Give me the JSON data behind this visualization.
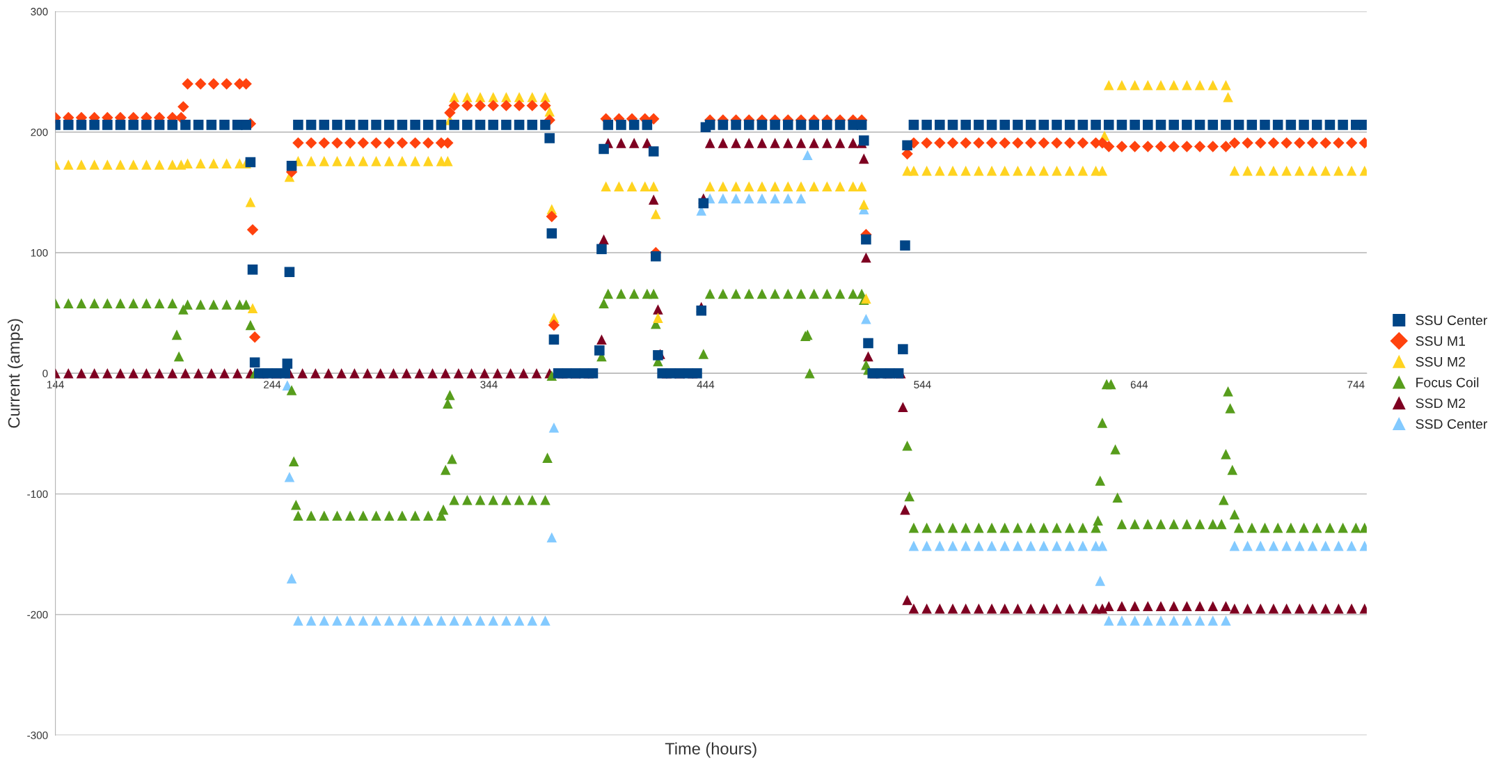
{
  "chart_data": {
    "type": "scatter",
    "xlabel": "Time (hours)",
    "ylabel": "Current (amps)",
    "xlim": [
      144,
      749
    ],
    "ylim": [
      -300,
      300
    ],
    "xticks": [
      144,
      244,
      344,
      444,
      544,
      644,
      744
    ],
    "yticks": [
      -300,
      -200,
      -100,
      0,
      100,
      200,
      300
    ],
    "grid": "y",
    "legend": "right",
    "series": [
      {
        "name": "SSU Center",
        "color": "#004586",
        "marker": "square",
        "x": [
          144,
          150,
          156,
          162,
          168,
          174,
          180,
          186,
          192,
          198,
          204,
          210,
          216,
          222,
          228,
          232,
          234,
          235,
          236,
          238,
          242,
          246,
          250,
          251,
          252,
          253,
          256,
          262,
          268,
          274,
          280,
          286,
          292,
          298,
          304,
          310,
          316,
          322,
          328,
          334,
          340,
          346,
          352,
          358,
          364,
          370,
          372,
          373,
          374,
          376,
          380,
          384,
          388,
          392,
          395,
          396,
          397,
          399,
          405,
          411,
          417,
          420,
          421,
          422,
          424,
          428,
          432,
          436,
          440,
          442,
          443,
          444,
          446,
          452,
          458,
          464,
          470,
          476,
          482,
          488,
          494,
          500,
          506,
          512,
          516,
          517,
          518,
          519,
          521,
          525,
          529,
          533,
          535,
          536,
          537,
          540,
          546,
          552,
          558,
          564,
          570,
          576,
          582,
          588,
          594,
          600,
          606,
          612,
          618,
          624,
          630,
          636,
          642,
          648,
          654,
          660,
          666,
          672,
          678,
          684,
          690,
          696,
          702,
          708,
          714,
          720,
          726,
          732,
          738,
          744,
          748
        ],
        "values": [
          206,
          206,
          206,
          206,
          206,
          206,
          206,
          206,
          206,
          206,
          206,
          206,
          206,
          206,
          206,
          206,
          175,
          86,
          9,
          0,
          0,
          0,
          0,
          8,
          84,
          172,
          206,
          206,
          206,
          206,
          206,
          206,
          206,
          206,
          206,
          206,
          206,
          206,
          206,
          206,
          206,
          206,
          206,
          206,
          206,
          206,
          195,
          116,
          28,
          0,
          0,
          0,
          0,
          0,
          19,
          103,
          186,
          206,
          206,
          206,
          206,
          184,
          97,
          15,
          0,
          0,
          0,
          0,
          0,
          52,
          141,
          204,
          206,
          206,
          206,
          206,
          206,
          206,
          206,
          206,
          206,
          206,
          206,
          206,
          206,
          193,
          111,
          25,
          0,
          0,
          0,
          0,
          20,
          106,
          189,
          206,
          206,
          206,
          206,
          206,
          206,
          206,
          206,
          206,
          206,
          206,
          206,
          206,
          206,
          206,
          206,
          206,
          206,
          206,
          206,
          206,
          206,
          206,
          206,
          206,
          206,
          206,
          206,
          206,
          206,
          206,
          206,
          206,
          206,
          206,
          206
        ]
      },
      {
        "name": "SSU M1",
        "color": "#ff420e",
        "marker": "diamond",
        "x": [
          144,
          150,
          156,
          162,
          168,
          174,
          180,
          186,
          192,
          198,
          202,
          203,
          205,
          211,
          217,
          223,
          229,
          232,
          234,
          235,
          236,
          253,
          256,
          262,
          268,
          274,
          280,
          286,
          292,
          298,
          304,
          310,
          316,
          322,
          325,
          326,
          328,
          334,
          340,
          346,
          352,
          358,
          364,
          370,
          372,
          373,
          374,
          398,
          404,
          410,
          416,
          420,
          421,
          446,
          452,
          458,
          464,
          470,
          476,
          482,
          488,
          494,
          500,
          506,
          512,
          516,
          518,
          537,
          540,
          546,
          552,
          558,
          564,
          570,
          576,
          582,
          588,
          594,
          600,
          606,
          612,
          618,
          624,
          627,
          630,
          636,
          642,
          648,
          654,
          660,
          666,
          672,
          678,
          684,
          688,
          694,
          700,
          706,
          712,
          718,
          724,
          730,
          736,
          742,
          748
        ],
        "values": [
          212,
          212,
          212,
          212,
          212,
          212,
          212,
          212,
          212,
          212,
          212,
          221,
          240,
          240,
          240,
          240,
          240,
          240,
          207,
          119,
          30,
          167,
          191,
          191,
          191,
          191,
          191,
          191,
          191,
          191,
          191,
          191,
          191,
          191,
          191,
          216,
          222,
          222,
          222,
          222,
          222,
          222,
          222,
          222,
          210,
          130,
          40,
          211,
          211,
          211,
          211,
          211,
          100,
          210,
          210,
          210,
          210,
          210,
          210,
          210,
          210,
          210,
          210,
          210,
          210,
          210,
          115,
          182,
          191,
          191,
          191,
          191,
          191,
          191,
          191,
          191,
          191,
          191,
          191,
          191,
          191,
          191,
          191,
          191,
          188,
          188,
          188,
          188,
          188,
          188,
          188,
          188,
          188,
          188,
          191,
          191,
          191,
          191,
          191,
          191,
          191,
          191,
          191,
          191,
          191
        ]
      },
      {
        "name": "SSU M2",
        "color": "#ffd320",
        "marker": "triangle",
        "x": [
          144,
          150,
          156,
          162,
          168,
          174,
          180,
          186,
          192,
          198,
          202,
          205,
          211,
          217,
          223,
          229,
          232,
          234,
          235,
          252,
          256,
          262,
          268,
          274,
          280,
          286,
          292,
          298,
          304,
          310,
          316,
          322,
          325,
          326,
          328,
          334,
          340,
          346,
          352,
          358,
          364,
          370,
          372,
          373,
          374,
          398,
          404,
          410,
          416,
          420,
          421,
          422,
          444,
          446,
          452,
          458,
          464,
          470,
          476,
          482,
          488,
          494,
          500,
          506,
          512,
          516,
          517,
          518,
          537,
          540,
          546,
          552,
          558,
          564,
          570,
          576,
          582,
          588,
          594,
          600,
          606,
          612,
          618,
          624,
          627,
          628,
          630,
          636,
          642,
          648,
          654,
          660,
          666,
          672,
          678,
          684,
          685,
          688,
          694,
          700,
          706,
          712,
          718,
          724,
          730,
          736,
          742,
          748
        ],
        "values": [
          173,
          173,
          173,
          173,
          173,
          173,
          173,
          173,
          173,
          173,
          173,
          174,
          174,
          174,
          174,
          174,
          174,
          142,
          54,
          163,
          176,
          176,
          176,
          176,
          176,
          176,
          176,
          176,
          176,
          176,
          176,
          176,
          176,
          210,
          229,
          229,
          229,
          229,
          229,
          229,
          229,
          229,
          217,
          136,
          46,
          155,
          155,
          155,
          155,
          155,
          132,
          46,
          null,
          155,
          155,
          155,
          155,
          155,
          155,
          155,
          155,
          155,
          155,
          155,
          155,
          155,
          140,
          62,
          168,
          168,
          168,
          168,
          168,
          168,
          168,
          168,
          168,
          168,
          168,
          168,
          168,
          168,
          168,
          168,
          168,
          197,
          239,
          239,
          239,
          239,
          239,
          239,
          239,
          239,
          239,
          239,
          229,
          168,
          168,
          168,
          168,
          168,
          168,
          168,
          168,
          168,
          168,
          168
        ]
      },
      {
        "name": "Focus Coil",
        "color": "#579d1c",
        "marker": "triangle",
        "x": [
          144,
          150,
          156,
          162,
          168,
          174,
          180,
          186,
          192,
          198,
          200,
          201,
          203,
          205,
          211,
          217,
          223,
          229,
          232,
          234,
          236,
          253,
          254,
          255,
          256,
          262,
          268,
          274,
          280,
          286,
          292,
          298,
          304,
          310,
          316,
          322,
          323,
          324,
          325,
          326,
          327,
          328,
          334,
          340,
          346,
          352,
          358,
          364,
          370,
          371,
          373,
          396,
          397,
          399,
          405,
          411,
          417,
          420,
          421,
          422,
          443,
          446,
          452,
          458,
          464,
          470,
          476,
          482,
          488,
          490,
          491,
          492,
          494,
          500,
          506,
          512,
          516,
          517,
          518,
          519,
          537,
          538,
          540,
          546,
          552,
          558,
          564,
          570,
          576,
          582,
          588,
          594,
          600,
          606,
          612,
          618,
          624,
          625,
          626,
          627,
          629,
          631,
          633,
          634,
          636,
          642,
          648,
          654,
          660,
          666,
          672,
          678,
          682,
          683,
          684,
          685,
          686,
          687,
          688,
          690,
          696,
          702,
          708,
          714,
          720,
          726,
          732,
          738,
          744,
          748
        ],
        "values": [
          58,
          58,
          58,
          58,
          58,
          58,
          58,
          58,
          58,
          58,
          32,
          14,
          53,
          57,
          57,
          57,
          57,
          57,
          57,
          40,
          0,
          -14,
          -73,
          -109,
          -118,
          -118,
          -118,
          -118,
          -118,
          -118,
          -118,
          -118,
          -118,
          -118,
          -118,
          -118,
          -113,
          -80,
          -25,
          -18,
          -71,
          -105,
          -105,
          -105,
          -105,
          -105,
          -105,
          -105,
          -105,
          -70,
          -2,
          14,
          58,
          66,
          66,
          66,
          66,
          66,
          41,
          10,
          16,
          66,
          66,
          66,
          66,
          66,
          66,
          66,
          66,
          31,
          32,
          0,
          66,
          66,
          66,
          66,
          66,
          61,
          7,
          3,
          -60,
          -102,
          -128,
          -128,
          -128,
          -128,
          -128,
          -128,
          -128,
          -128,
          -128,
          -128,
          -128,
          -128,
          -128,
          -128,
          -128,
          -122,
          -89,
          -41,
          -9,
          -9,
          -63,
          -103,
          -125,
          -125,
          -125,
          -125,
          -125,
          -125,
          -125,
          -125,
          -125,
          -105,
          -67,
          -15,
          -29,
          -80,
          -117,
          -128,
          -128,
          -128,
          -128,
          -128,
          -128,
          -128,
          -128,
          -128,
          -128,
          -128
        ]
      },
      {
        "name": "SSD M2",
        "color": "#7e0021",
        "marker": "triangle",
        "x": [
          144,
          150,
          156,
          162,
          168,
          174,
          180,
          186,
          192,
          198,
          204,
          210,
          216,
          222,
          228,
          234,
          240,
          246,
          252,
          258,
          264,
          270,
          276,
          282,
          288,
          294,
          300,
          306,
          312,
          318,
          324,
          330,
          336,
          342,
          348,
          354,
          360,
          366,
          372,
          378,
          384,
          390,
          396,
          397,
          399,
          405,
          411,
          417,
          420,
          422,
          423,
          426,
          432,
          438,
          442,
          443,
          446,
          452,
          458,
          464,
          470,
          476,
          482,
          488,
          494,
          500,
          506,
          512,
          516,
          517,
          518,
          519,
          522,
          528,
          534,
          535,
          536,
          537,
          540,
          546,
          552,
          558,
          564,
          570,
          576,
          582,
          588,
          594,
          600,
          606,
          612,
          618,
          624,
          627,
          630,
          636,
          642,
          648,
          654,
          660,
          666,
          672,
          678,
          684,
          688,
          694,
          700,
          706,
          712,
          718,
          724,
          730,
          736,
          742,
          748
        ],
        "values": [
          0,
          0,
          0,
          0,
          0,
          0,
          0,
          0,
          0,
          0,
          0,
          0,
          0,
          0,
          0,
          0,
          0,
          0,
          0,
          0,
          0,
          0,
          0,
          0,
          0,
          0,
          0,
          0,
          0,
          0,
          0,
          0,
          0,
          0,
          0,
          0,
          0,
          0,
          0,
          0,
          0,
          0,
          28,
          111,
          191,
          191,
          191,
          191,
          144,
          53,
          16,
          0,
          0,
          0,
          55,
          145,
          191,
          191,
          191,
          191,
          191,
          191,
          191,
          191,
          191,
          191,
          191,
          191,
          191,
          178,
          96,
          14,
          0,
          0,
          0,
          -28,
          -113,
          -188,
          -195,
          -195,
          -195,
          -195,
          -195,
          -195,
          -195,
          -195,
          -195,
          -195,
          -195,
          -195,
          -195,
          -195,
          -195,
          -195,
          -193,
          -193,
          -193,
          -193,
          -193,
          -193,
          -193,
          -193,
          -193,
          -193,
          -195,
          -195,
          -195,
          -195,
          -195,
          -195,
          -195,
          -195,
          -195,
          -195,
          -195
        ]
      },
      {
        "name": "SSD Center",
        "color": "#83caff",
        "marker": "triangle",
        "x": [
          251,
          252,
          253,
          256,
          262,
          268,
          274,
          280,
          286,
          292,
          298,
          304,
          310,
          316,
          322,
          328,
          334,
          340,
          346,
          352,
          358,
          364,
          370,
          373,
          374,
          442,
          446,
          452,
          458,
          464,
          470,
          476,
          482,
          488,
          491,
          517,
          518,
          540,
          546,
          552,
          558,
          564,
          570,
          576,
          582,
          588,
          594,
          600,
          606,
          612,
          618,
          624,
          626,
          627,
          630,
          636,
          642,
          648,
          654,
          660,
          666,
          672,
          678,
          684,
          688,
          694,
          700,
          706,
          712,
          718,
          724,
          730,
          736,
          742,
          748
        ],
        "values": [
          -10,
          -86,
          -170,
          -205,
          -205,
          -205,
          -205,
          -205,
          -205,
          -205,
          -205,
          -205,
          -205,
          -205,
          -205,
          -205,
          -205,
          -205,
          -205,
          -205,
          -205,
          -205,
          -205,
          -136,
          -45,
          135,
          145,
          145,
          145,
          145,
          145,
          145,
          145,
          145,
          181,
          136,
          45,
          -143,
          -143,
          -143,
          -143,
          -143,
          -143,
          -143,
          -143,
          -143,
          -143,
          -143,
          -143,
          -143,
          -143,
          -143,
          -172,
          -143,
          -205,
          -205,
          -205,
          -205,
          -205,
          -205,
          -205,
          -205,
          -205,
          -205,
          -143,
          -143,
          -143,
          -143,
          -143,
          -143,
          -143,
          -143,
          -143,
          -143,
          -143
        ]
      }
    ]
  }
}
